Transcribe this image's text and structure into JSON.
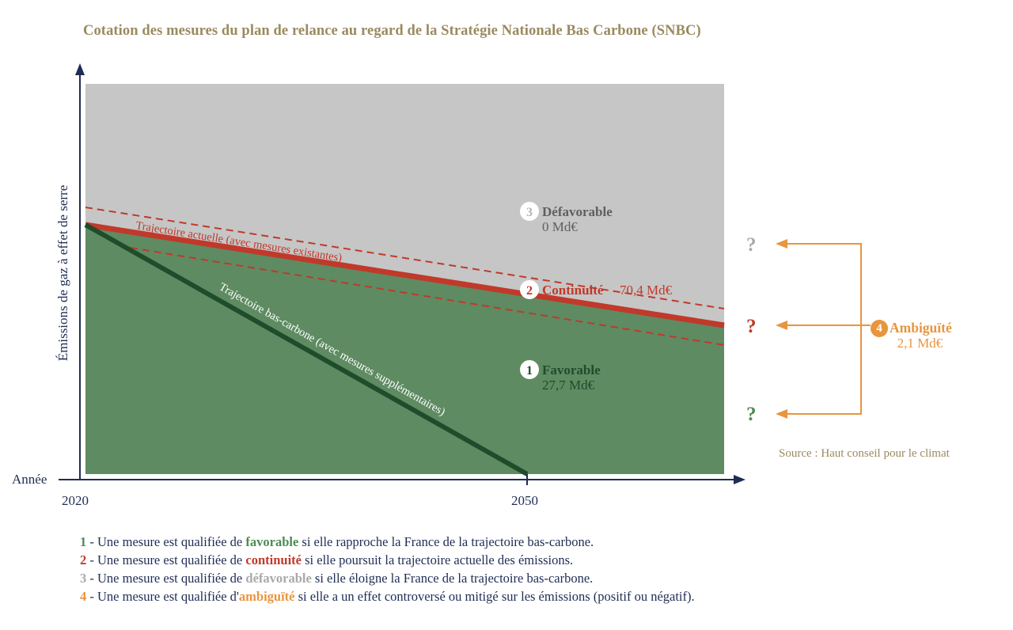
{
  "title": "Cotation des mesures du plan de relance au regard de la Stratégie Nationale Bas Carbone (SNBC)",
  "axes": {
    "y_label": "Émissions de gaz à effet de serre",
    "x_label": "Année",
    "x_ticks": [
      "2020",
      "2050"
    ]
  },
  "trajectories": {
    "current": "Trajectoire actuelle (avec mesures existantes)",
    "low_carbon": "Trajectoire bas-carbone (avec mesures supplémentaires)"
  },
  "zones": {
    "defavorable": {
      "num": "3",
      "label": "Défavorable",
      "value": "0 Md€",
      "color": "#6b6b6b"
    },
    "continuite": {
      "num": "2",
      "label": "Continuité",
      "value": "70,4 Md€",
      "color": "#c0392b"
    },
    "favorable": {
      "num": "1",
      "label": "Favorable",
      "value": "27,7 Md€",
      "color": "#1f4d2b"
    }
  },
  "ambiguite": {
    "num": "4",
    "label": "Ambiguïté",
    "value": "2,1 Md€",
    "color": "#e8953f",
    "marks": [
      "?",
      "?",
      "?"
    ]
  },
  "source": "Source : Haut conseil pour le climat",
  "legend": [
    {
      "num": "1",
      "pre": " - Une mesure est qualifiée de ",
      "kw": "favorable",
      "post": " si elle rapproche la France de la trajectoire bas-carbone.",
      "color": "#4e8a52"
    },
    {
      "num": "2",
      "pre": " - Une mesure est qualifiée de ",
      "kw": "continuité",
      "post": " si elle poursuit la trajectoire actuelle des émissions.",
      "color": "#c0392b"
    },
    {
      "num": "3",
      "pre": " - Une mesure est qualifiée de ",
      "kw": "défavorable",
      "post": " si elle éloigne la France de la trajectoire bas-carbone.",
      "color": "#a9a9a9"
    },
    {
      "num": "4",
      "pre": " - Une mesure est qualifiée d'",
      "kw": "ambiguïté",
      "post": " si elle a un effet controversé ou mitigé sur les émissions (positif ou négatif).",
      "color": "#e8953f"
    }
  ]
}
